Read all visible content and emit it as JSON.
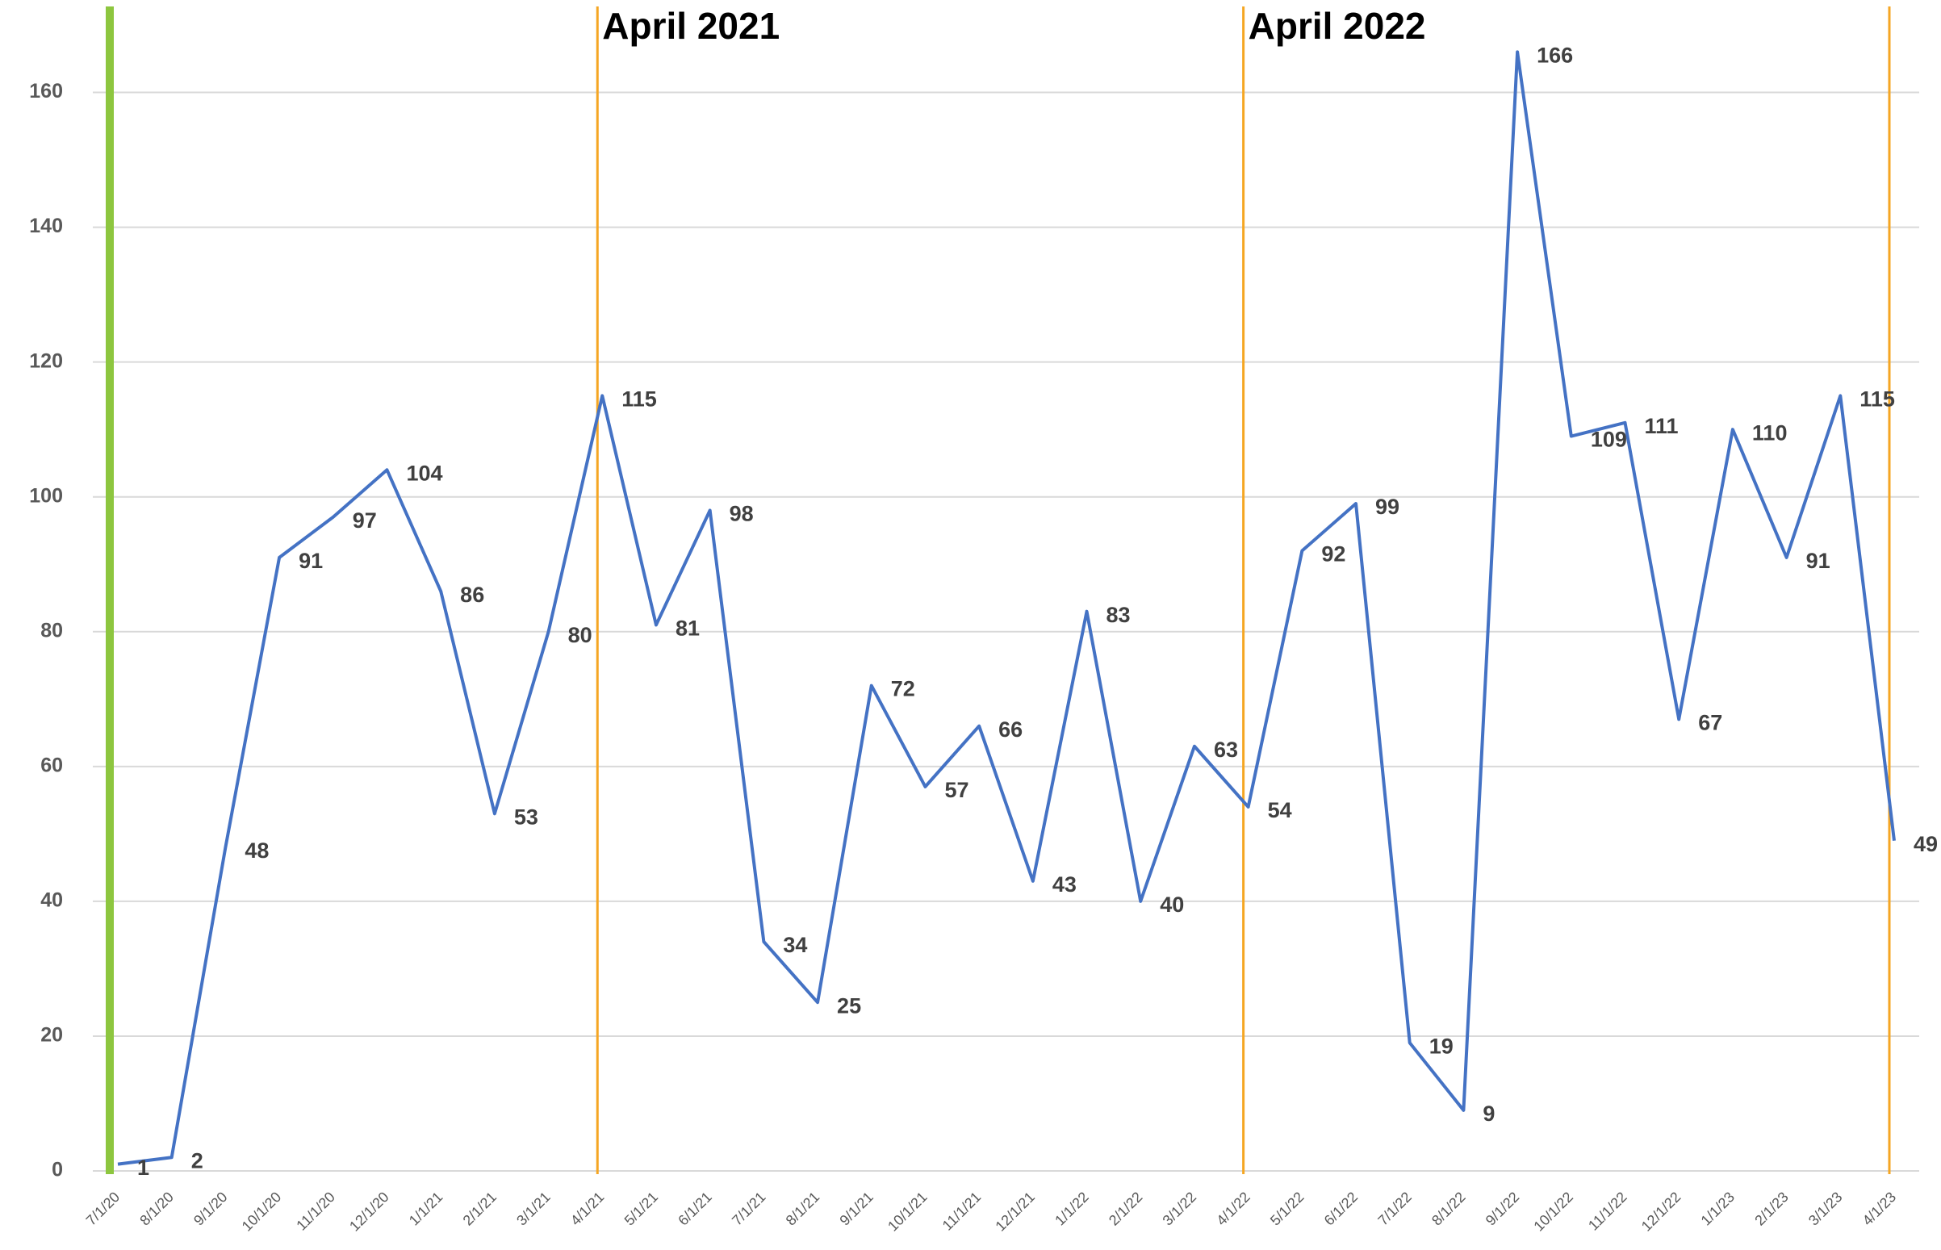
{
  "chart_data": {
    "type": "line",
    "categories": [
      "7/1/20",
      "8/1/20",
      "9/1/20",
      "10/1/20",
      "11/1/20",
      "12/1/20",
      "1/1/21",
      "2/1/21",
      "3/1/21",
      "4/1/21",
      "5/1/21",
      "6/1/21",
      "7/1/21",
      "8/1/21",
      "9/1/21",
      "10/1/21",
      "11/1/21",
      "12/1/21",
      "1/1/22",
      "2/1/22",
      "3/1/22",
      "4/1/22",
      "5/1/22",
      "6/1/22",
      "7/1/22",
      "8/1/22",
      "9/1/22",
      "10/1/22",
      "11/1/22",
      "12/1/22",
      "1/1/23",
      "2/1/23",
      "3/1/23",
      "4/1/23"
    ],
    "values": [
      1,
      2,
      48,
      91,
      97,
      104,
      86,
      53,
      80,
      115,
      81,
      98,
      34,
      25,
      72,
      57,
      66,
      43,
      83,
      40,
      63,
      54,
      92,
      99,
      19,
      9,
      166,
      109,
      111,
      67,
      110,
      91,
      115,
      49
    ],
    "color": "#4472c4",
    "ylim": [
      0,
      170
    ],
    "yticks": [
      0,
      20,
      40,
      60,
      80,
      100,
      120,
      140,
      160
    ],
    "grid": true,
    "markers": [
      {
        "at": "7/1/20",
        "color": "#8dc63f"
      },
      {
        "at": "4/1/21",
        "color": "#f5a623",
        "text": "April 2021"
      },
      {
        "at": "4/1/22",
        "color": "#f5a623",
        "text": "April 2022"
      },
      {
        "at": "4/1/23",
        "color": "#f5a623"
      }
    ]
  }
}
